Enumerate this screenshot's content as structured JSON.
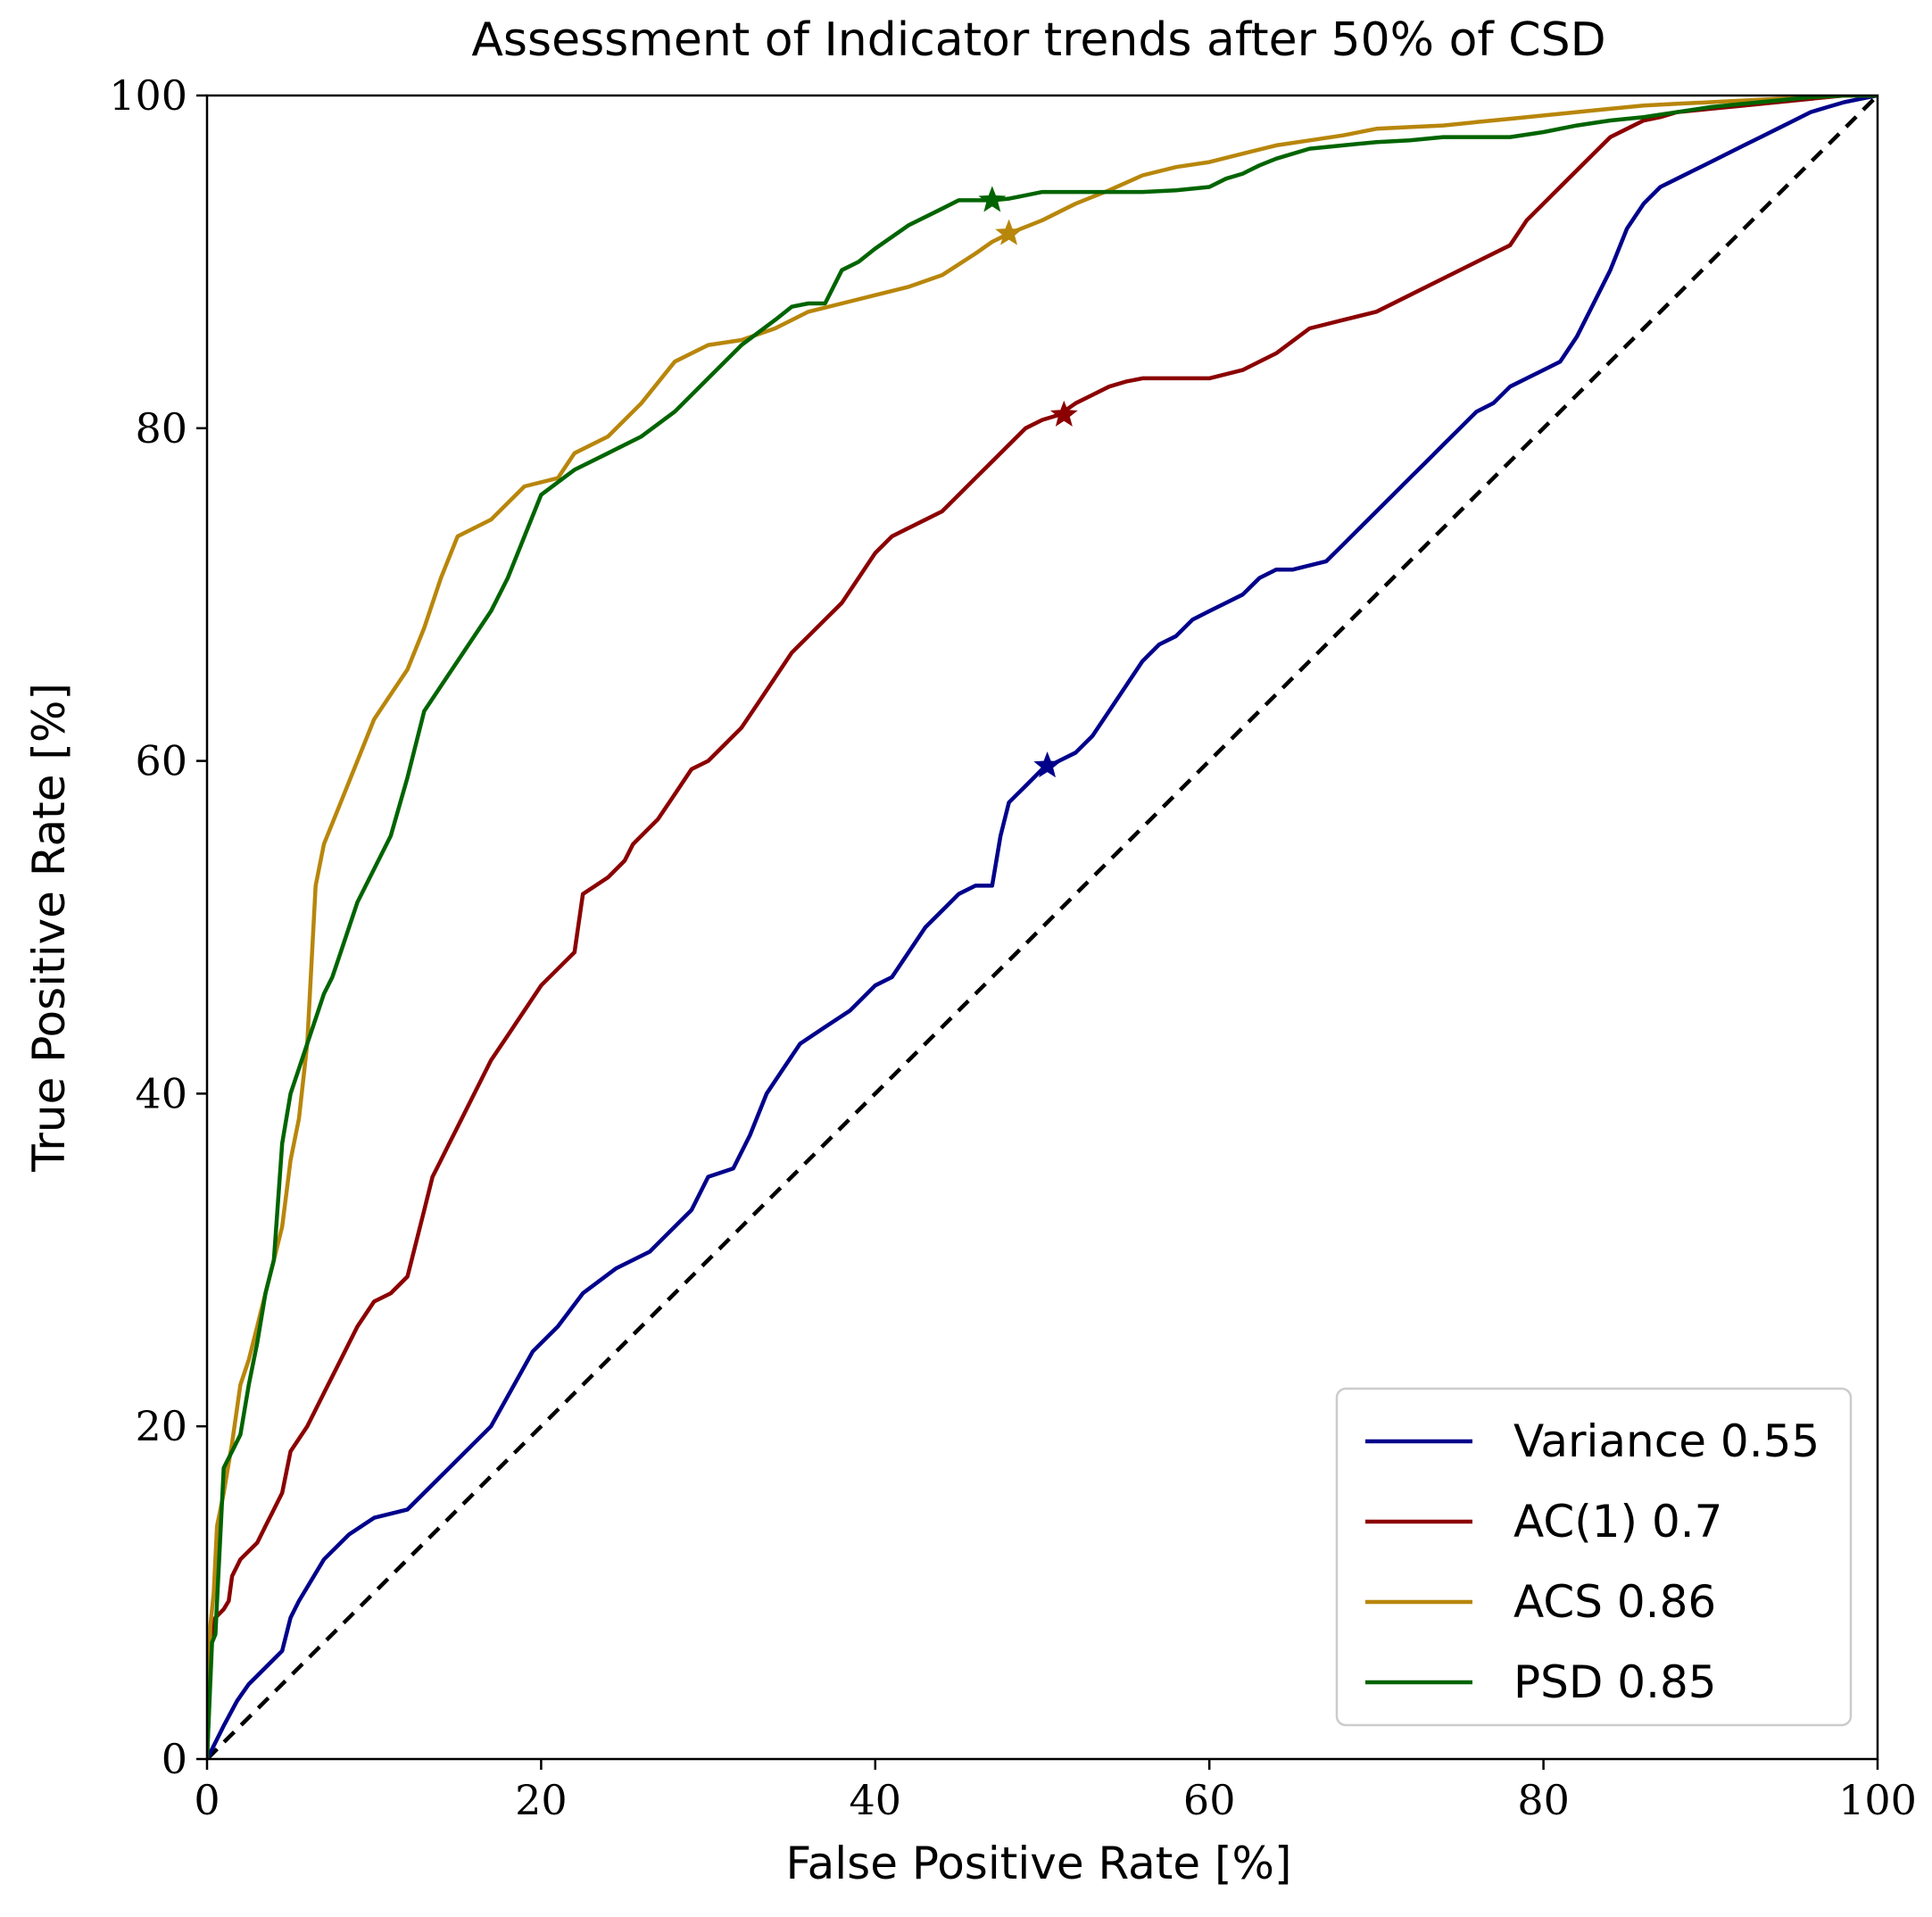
{
  "chart_data": {
    "type": "line",
    "title": "Assessment of Indicator trends after 50% of CSD",
    "xlabel": "False Positive Rate [%]",
    "ylabel": "True Positive Rate [%]",
    "xlim": [
      0,
      100
    ],
    "ylim": [
      0,
      100
    ],
    "xticks": [
      0,
      20,
      40,
      60,
      80,
      100
    ],
    "yticks": [
      0,
      20,
      40,
      60,
      80,
      100
    ],
    "grid": false,
    "legend_position": "lower-right",
    "diagonal": {
      "style": "dashed",
      "color": "#000000",
      "x": [
        0,
        100
      ],
      "y": [
        0,
        100
      ]
    },
    "series": [
      {
        "name": "Variance 0.55",
        "color": "#00008b",
        "marker": {
          "x": 50.3,
          "y": 59.7
        },
        "x": [
          0,
          0.5,
          1,
          1.8,
          2.5,
          3.5,
          4.5,
          5,
          5.5,
          7,
          8.5,
          10,
          12,
          14.5,
          17,
          19.5,
          21,
          22.5,
          24.5,
          26.5,
          27.5,
          29,
          30,
          31.5,
          32.5,
          33.5,
          34.5,
          35.5,
          37,
          38.5,
          40,
          41,
          42,
          43,
          44,
          45,
          46,
          47,
          47.5,
          48,
          49,
          50,
          51,
          52,
          53,
          54,
          55,
          56,
          57,
          58,
          59,
          60,
          61,
          62,
          63,
          64,
          65,
          67,
          68,
          69,
          70,
          71,
          72,
          73,
          74,
          75,
          76,
          77,
          78,
          79,
          80,
          81,
          82,
          83,
          84,
          85,
          86,
          87,
          88,
          89,
          90,
          91,
          92,
          93,
          94,
          95,
          96,
          97,
          98,
          99,
          100
        ],
        "y": [
          0,
          1,
          2,
          3.5,
          4.5,
          5.5,
          6.5,
          8.5,
          9.5,
          12,
          13.5,
          14.5,
          15,
          17.5,
          20,
          24.5,
          26,
          28,
          29.5,
          30.5,
          31.5,
          33,
          35,
          35.5,
          37.5,
          40,
          41.5,
          43,
          44,
          45,
          46.5,
          47,
          48.5,
          50,
          51,
          52,
          52.5,
          52.5,
          55.5,
          57.5,
          58.5,
          59.5,
          60,
          60.5,
          61.5,
          63,
          64.5,
          66,
          67,
          67.5,
          68.5,
          69,
          69.5,
          70,
          71,
          71.5,
          71.5,
          72,
          73,
          74,
          75,
          76,
          77,
          78,
          79,
          80,
          81,
          81.5,
          82.5,
          83,
          83.5,
          84,
          85.5,
          87.5,
          89.5,
          92,
          93.5,
          94.5,
          95,
          95.5,
          96,
          96.5,
          97,
          97.5,
          98,
          98.5,
          99,
          99.3,
          99.6,
          99.8,
          100
        ]
      },
      {
        "name": "AC(1) 0.7",
        "color": "#8b0000",
        "marker": {
          "x": 51.3,
          "y": 80.8
        },
        "x": [
          0,
          0.3,
          0.5,
          1,
          1.3,
          1.5,
          2,
          3,
          3.5,
          4,
          4.5,
          5,
          6,
          7,
          8,
          9,
          10,
          11,
          12,
          12.5,
          13,
          13.5,
          14,
          14.5,
          15,
          16,
          17,
          18,
          19,
          20,
          22,
          22.5,
          24,
          25,
          25.5,
          27,
          28,
          29,
          30,
          31,
          32,
          33,
          34,
          35,
          36,
          37,
          38,
          39,
          40,
          41,
          42,
          43,
          44,
          45,
          46,
          47,
          48,
          49,
          50,
          51,
          52,
          53,
          54,
          55,
          56,
          58,
          60,
          62,
          64,
          66,
          68,
          70,
          72,
          74,
          76,
          78,
          79,
          80,
          81,
          82,
          83,
          84,
          85,
          86,
          87,
          88,
          90,
          92,
          94,
          96,
          98,
          100
        ],
        "y": [
          0,
          8,
          8.5,
          9,
          9.5,
          11,
          12,
          13,
          14,
          15,
          16,
          18.5,
          20,
          22,
          24,
          26,
          27.5,
          28,
          29,
          31,
          33,
          35,
          36,
          37,
          38,
          40,
          42,
          43.5,
          45,
          46.5,
          48.5,
          52,
          53,
          54,
          55,
          56.5,
          58,
          59.5,
          60,
          61,
          62,
          63.5,
          65,
          66.5,
          67.5,
          68.5,
          69.5,
          71,
          72.5,
          73.5,
          74,
          74.5,
          75,
          76,
          77,
          78,
          79,
          80,
          80.5,
          80.8,
          81.5,
          82,
          82.5,
          82.8,
          83,
          83,
          83,
          83.5,
          84.5,
          86,
          86.5,
          87,
          88,
          89,
          90,
          91,
          92.5,
          93.5,
          94.5,
          95.5,
          96.5,
          97.5,
          98,
          98.5,
          98.7,
          99,
          99.2,
          99.4,
          99.6,
          99.8,
          100,
          100
        ]
      },
      {
        "name": "ACS 0.86",
        "color": "#b8860b",
        "marker": {
          "x": 48,
          "y": 91.7
        },
        "x": [
          0,
          0.2,
          0.4,
          0.6,
          0.8,
          1,
          1.5,
          2,
          2.5,
          3,
          3.5,
          4,
          4.5,
          5,
          5.5,
          6,
          6.5,
          7,
          8,
          9,
          10,
          11,
          12,
          13,
          14,
          15,
          17,
          19,
          21,
          22,
          24,
          26,
          28,
          30,
          32,
          34,
          36,
          38,
          40,
          42,
          44,
          46,
          47,
          48,
          50,
          52,
          54,
          56,
          58,
          60,
          62,
          64,
          66,
          68,
          70,
          72,
          74,
          76,
          78,
          80,
          82,
          84,
          86,
          88,
          90,
          92,
          94,
          96,
          98,
          100
        ],
        "y": [
          0,
          8,
          10,
          14,
          15,
          16,
          19,
          22.5,
          24,
          26,
          28,
          30,
          32,
          36,
          38.5,
          43,
          52.5,
          55,
          57.5,
          60,
          62.5,
          64,
          65.5,
          68,
          71,
          73.5,
          74.5,
          76.5,
          77,
          78.5,
          79.5,
          81.5,
          84,
          85,
          85.3,
          86,
          87,
          87.5,
          88,
          88.5,
          89.2,
          90.5,
          91.2,
          91.7,
          92.5,
          93.5,
          94.3,
          95.2,
          95.7,
          96,
          96.5,
          97,
          97.3,
          97.6,
          98,
          98.1,
          98.2,
          98.4,
          98.6,
          98.8,
          99,
          99.2,
          99.4,
          99.5,
          99.6,
          99.7,
          99.8,
          99.9,
          100,
          100
        ]
      },
      {
        "name": "PSD 0.85",
        "color": "#006400",
        "marker": {
          "x": 47,
          "y": 93.7
        },
        "x": [
          0,
          0.3,
          0.5,
          1,
          1.5,
          2,
          2.5,
          3,
          3.5,
          4,
          4.5,
          5,
          5.5,
          6,
          6.5,
          7,
          7.5,
          8,
          9,
          10,
          11,
          12,
          13,
          14,
          15,
          16,
          17,
          18,
          19,
          20,
          22,
          24,
          26,
          28,
          30,
          32,
          34,
          35,
          36,
          37,
          38,
          39,
          40,
          42,
          44,
          45,
          46,
          47,
          48,
          50,
          52,
          54,
          56,
          58,
          60,
          61,
          62,
          63,
          64,
          66,
          68,
          70,
          72,
          74,
          76,
          78,
          80,
          82,
          84,
          86,
          88,
          90,
          92,
          94,
          96,
          98,
          100
        ],
        "y": [
          0,
          7,
          7.5,
          17.5,
          18.5,
          19.5,
          22.5,
          25,
          28,
          30,
          37,
          40,
          41.5,
          43,
          44.5,
          46,
          47,
          48.5,
          51.5,
          53.5,
          55.5,
          59,
          63,
          64.5,
          66,
          67.5,
          69,
          71,
          73.5,
          76,
          77.5,
          78.5,
          79.5,
          81,
          83,
          85,
          86.5,
          87.3,
          87.5,
          87.5,
          89.5,
          90,
          90.8,
          92.2,
          93.2,
          93.7,
          93.7,
          93.7,
          93.8,
          94.2,
          94.2,
          94.2,
          94.2,
          94.3,
          94.5,
          95,
          95.3,
          95.8,
          96.2,
          96.8,
          97,
          97.2,
          97.3,
          97.5,
          97.5,
          97.5,
          97.8,
          98.2,
          98.5,
          98.7,
          99,
          99.3,
          99.5,
          99.7,
          99.9,
          100,
          100
        ]
      }
    ]
  }
}
